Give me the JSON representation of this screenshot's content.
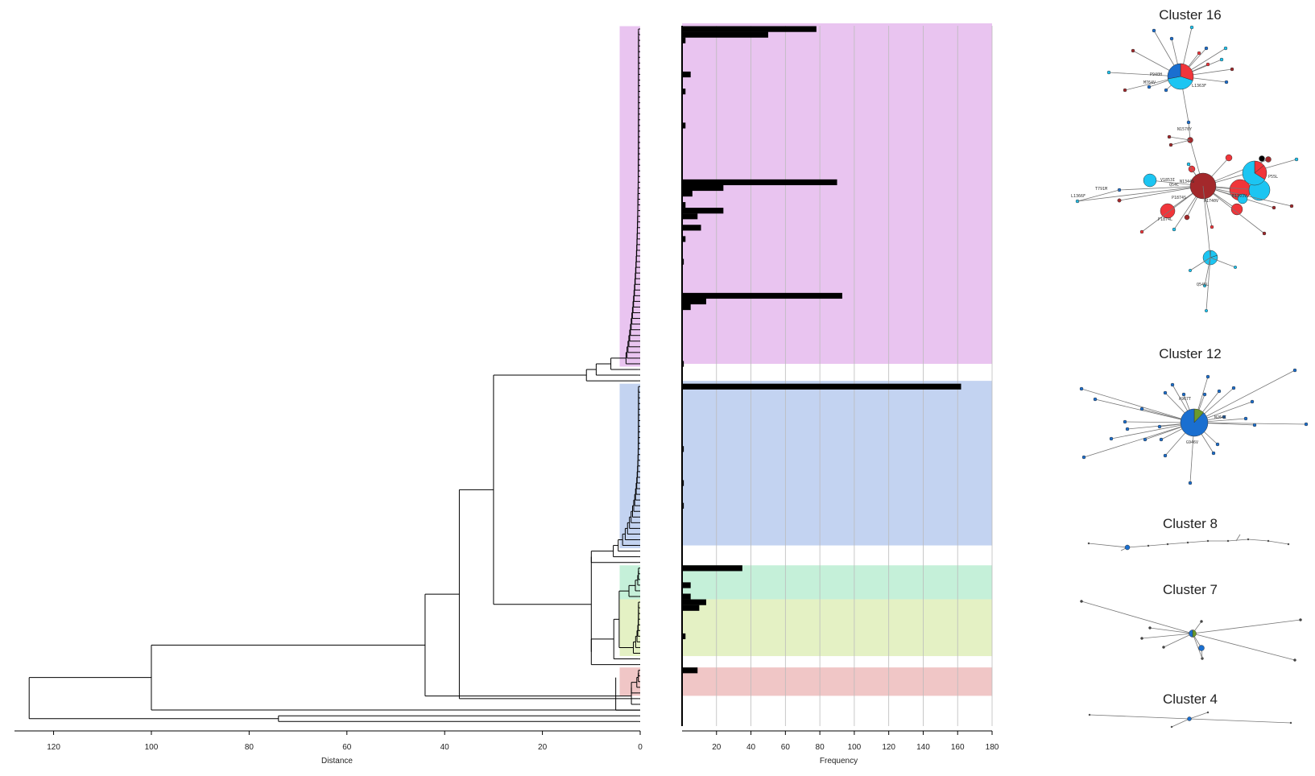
{
  "colors": {
    "band_purple": "#e9c4f0",
    "band_blue": "#c3d3f1",
    "band_green": "#c5f0d9",
    "band_yellow": "#e4f1c4",
    "band_red": "#f0c6c6",
    "bar": "#000000",
    "grid": "#bbbbbb",
    "node_red": "#f0353a",
    "node_cyan": "#1cc5f2",
    "node_blue": "#1a6fd0",
    "node_darkred": "#a3282b",
    "node_green": "#6a9a2a"
  },
  "chart_data": [
    {
      "type": "dendrogram",
      "xlabel": "Distance",
      "x_ticks": [
        120,
        100,
        80,
        60,
        40,
        20,
        0
      ],
      "xlim": [
        128,
        0
      ],
      "leaf_count": 128,
      "groups": [
        {
          "color": "purple",
          "leaf_range": [
            0,
            59
          ]
        },
        {
          "color": "blue",
          "leaf_range": [
            63,
            91
          ]
        },
        {
          "color": "green",
          "leaf_range": [
            95,
            100
          ]
        },
        {
          "color": "yellow",
          "leaf_range": [
            101,
            110
          ]
        },
        {
          "color": "red",
          "leaf_range": [
            113,
            117
          ]
        }
      ],
      "merges": [
        {
          "height": 125,
          "leaves": "all"
        },
        {
          "height": 100,
          "leaves": "0-120"
        },
        {
          "height": 74,
          "leaves": "125-126"
        },
        {
          "height": 44,
          "leaves": "0-117"
        },
        {
          "height": 37,
          "leaves": "0-111"
        },
        {
          "height": 30,
          "leaves": "0-110"
        },
        {
          "height": 11,
          "leaves": "purple"
        },
        {
          "height": 10,
          "leaves": "blue+green+yellow"
        },
        {
          "height": 5,
          "leaves": "red"
        }
      ]
    },
    {
      "type": "bar",
      "orientation": "horizontal",
      "xlabel": "Frequency",
      "x_ticks": [
        20,
        40,
        60,
        80,
        100,
        120,
        140,
        160,
        180
      ],
      "xlim": [
        0,
        180
      ],
      "bars": [
        {
          "row": 0,
          "value": 78
        },
        {
          "row": 1,
          "value": 50
        },
        {
          "row": 2,
          "value": 2
        },
        {
          "row": 8,
          "value": 5
        },
        {
          "row": 11,
          "value": 2
        },
        {
          "row": 17,
          "value": 2
        },
        {
          "row": 27,
          "value": 90
        },
        {
          "row": 28,
          "value": 24
        },
        {
          "row": 29,
          "value": 6
        },
        {
          "row": 31,
          "value": 2
        },
        {
          "row": 32,
          "value": 24
        },
        {
          "row": 33,
          "value": 9
        },
        {
          "row": 35,
          "value": 11
        },
        {
          "row": 37,
          "value": 2
        },
        {
          "row": 41,
          "value": 1
        },
        {
          "row": 47,
          "value": 93
        },
        {
          "row": 48,
          "value": 14
        },
        {
          "row": 49,
          "value": 5
        },
        {
          "row": 59,
          "value": 1
        },
        {
          "row": 63,
          "value": 162
        },
        {
          "row": 74,
          "value": 1
        },
        {
          "row": 80,
          "value": 1
        },
        {
          "row": 84,
          "value": 1
        },
        {
          "row": 95,
          "value": 35
        },
        {
          "row": 98,
          "value": 5
        },
        {
          "row": 100,
          "value": 5
        },
        {
          "row": 101,
          "value": 14
        },
        {
          "row": 102,
          "value": 10
        },
        {
          "row": 107,
          "value": 2
        },
        {
          "row": 113,
          "value": 9
        }
      ]
    },
    {
      "type": "network",
      "clusters": [
        {
          "title": "Cluster 16",
          "labels": [
            "P940H",
            "M764V",
            "L1363F",
            "N1570Y",
            "T791M",
            "L1366F",
            "V1853I",
            "Q54C",
            "N1344S",
            "P1874S",
            "P1874L",
            "E1393V",
            "A1740V",
            "P55L",
            "Q545L"
          ]
        },
        {
          "title": "Cluster 12",
          "labels": [
            "A967T",
            "N264C",
            "G946V"
          ]
        },
        {
          "title": "Cluster 8",
          "labels": []
        },
        {
          "title": "Cluster 7",
          "labels": []
        },
        {
          "title": "Cluster 4",
          "labels": []
        }
      ]
    }
  ]
}
